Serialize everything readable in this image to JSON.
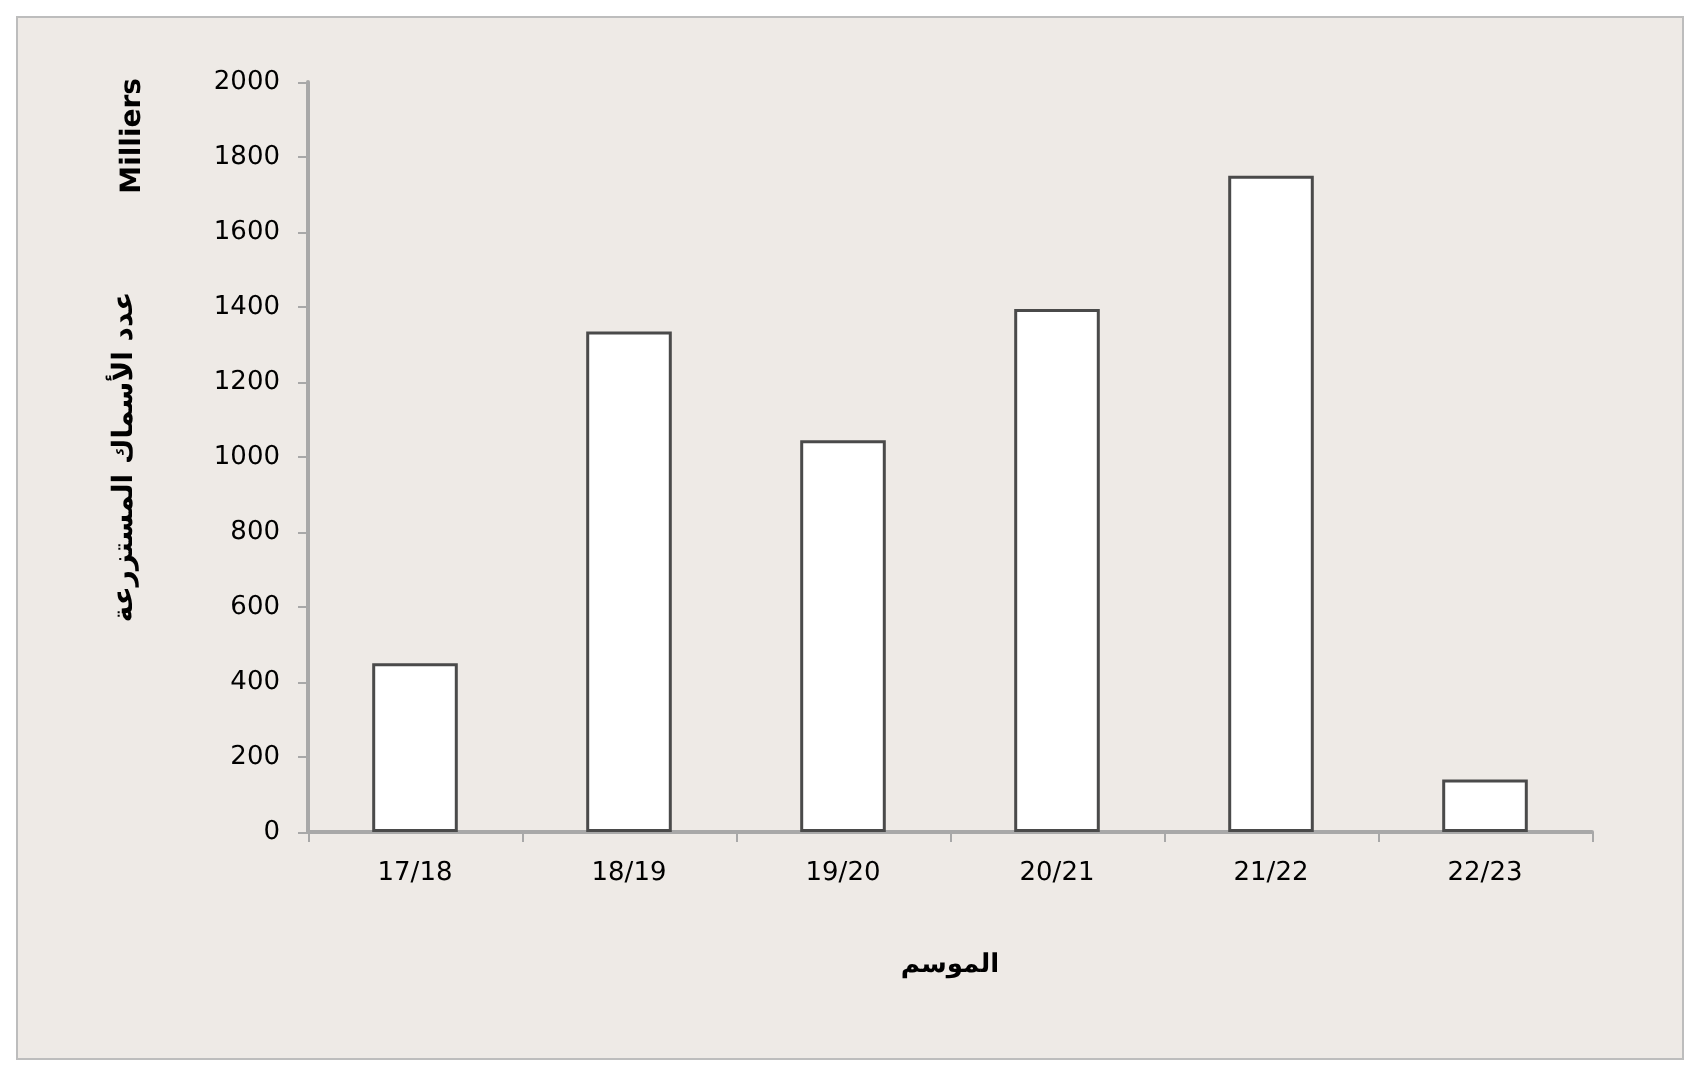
{
  "chart_data": {
    "type": "bar",
    "xlabel": "الموسم",
    "ylabel": "عدد الأسماك المستزرعة",
    "annotations": [
      "Milliers"
    ],
    "categories": [
      "17/18",
      "18/19",
      "19/20",
      "20/21",
      "21/22",
      "22/23"
    ],
    "values": [
      450,
      1335,
      1045,
      1395,
      1750,
      140
    ],
    "color": "#ffffff",
    "ylim": [
      0,
      2000
    ],
    "yticks": [
      0,
      200,
      400,
      600,
      800,
      1000,
      1200,
      1400,
      1600,
      1800,
      2000
    ],
    "grid": false
  }
}
